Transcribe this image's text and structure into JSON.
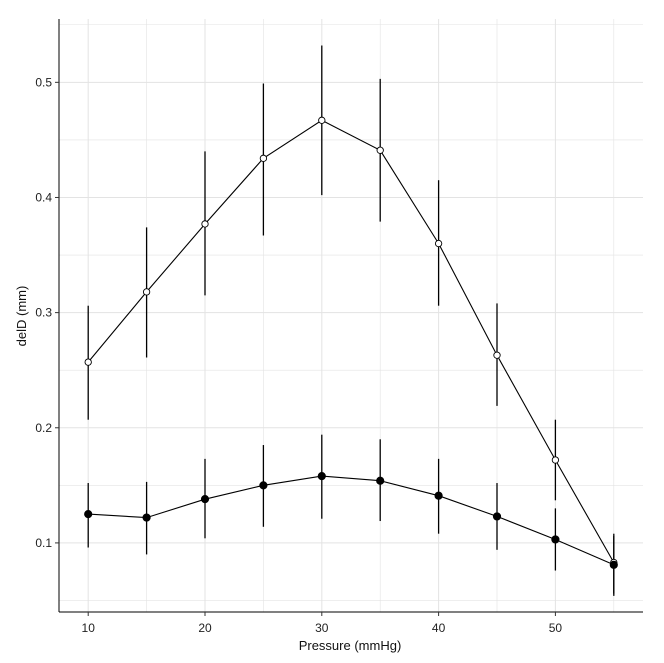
{
  "chart_data": {
    "type": "line",
    "xlabel": "Pressure (mmHg)",
    "ylabel": "delD (mm)",
    "xlim": [
      7.5,
      57.5
    ],
    "ylim": [
      0.04,
      0.555
    ],
    "x_ticks": [
      10,
      20,
      30,
      40,
      50
    ],
    "x_tick_labels": [
      "10",
      "20",
      "30",
      "40",
      "50"
    ],
    "y_ticks": [
      0.1,
      0.2,
      0.3,
      0.4,
      0.5
    ],
    "y_tick_labels": [
      "0.1",
      "0.2",
      "0.3",
      "0.4",
      "0.5"
    ],
    "grid": true,
    "legend": "none",
    "series": [
      {
        "marker": "open-circle",
        "x": [
          10,
          15,
          20,
          25,
          30,
          35,
          40,
          45,
          50,
          55
        ],
        "y": [
          0.257,
          0.318,
          0.377,
          0.434,
          0.467,
          0.441,
          0.36,
          0.263,
          0.172,
          0.083
        ],
        "err_low": [
          0.207,
          0.261,
          0.315,
          0.367,
          0.402,
          0.379,
          0.306,
          0.219,
          0.137,
          0.056
        ],
        "err_high": [
          0.306,
          0.374,
          0.44,
          0.499,
          0.532,
          0.503,
          0.415,
          0.308,
          0.207,
          0.108
        ]
      },
      {
        "marker": "filled-circle",
        "x": [
          10,
          15,
          20,
          25,
          30,
          35,
          40,
          45,
          50,
          55
        ],
        "y": [
          0.125,
          0.122,
          0.138,
          0.15,
          0.158,
          0.154,
          0.141,
          0.123,
          0.103,
          0.081
        ],
        "err_low": [
          0.096,
          0.09,
          0.104,
          0.114,
          0.121,
          0.119,
          0.108,
          0.094,
          0.076,
          0.054
        ],
        "err_high": [
          0.152,
          0.153,
          0.173,
          0.185,
          0.194,
          0.19,
          0.173,
          0.152,
          0.13,
          0.106
        ]
      }
    ],
    "colors": {
      "line": "#000000",
      "grid": "#e3e3e3",
      "axis": "#000000"
    }
  }
}
